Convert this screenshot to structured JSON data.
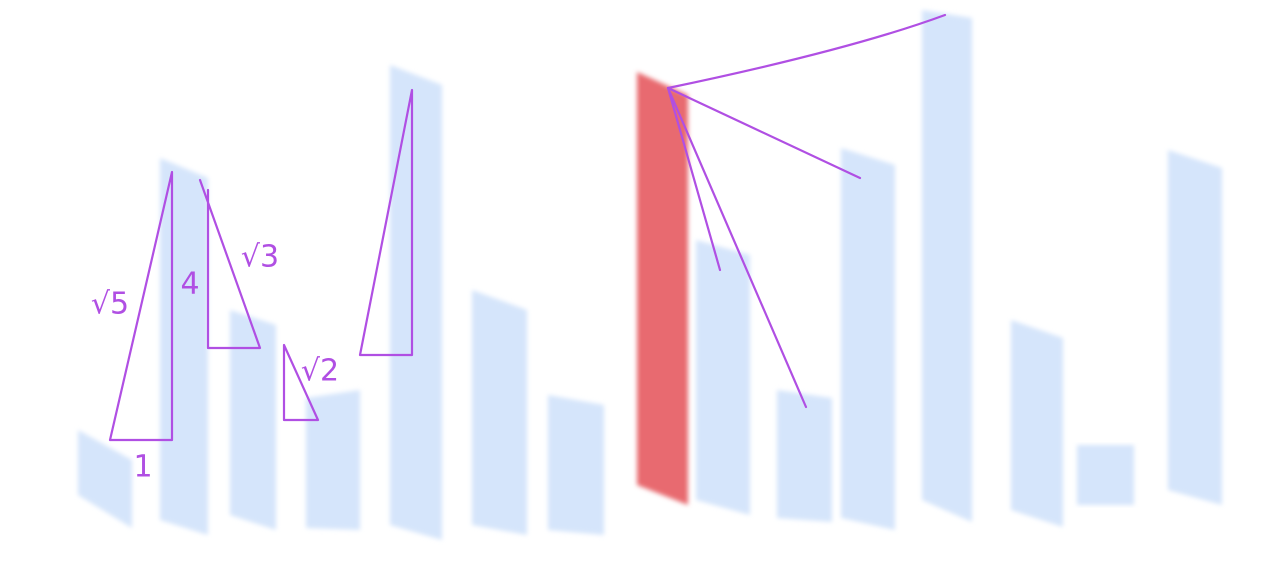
{
  "labels": [
    "√5",
    "4",
    "√3",
    "√2",
    "1"
  ]
}
